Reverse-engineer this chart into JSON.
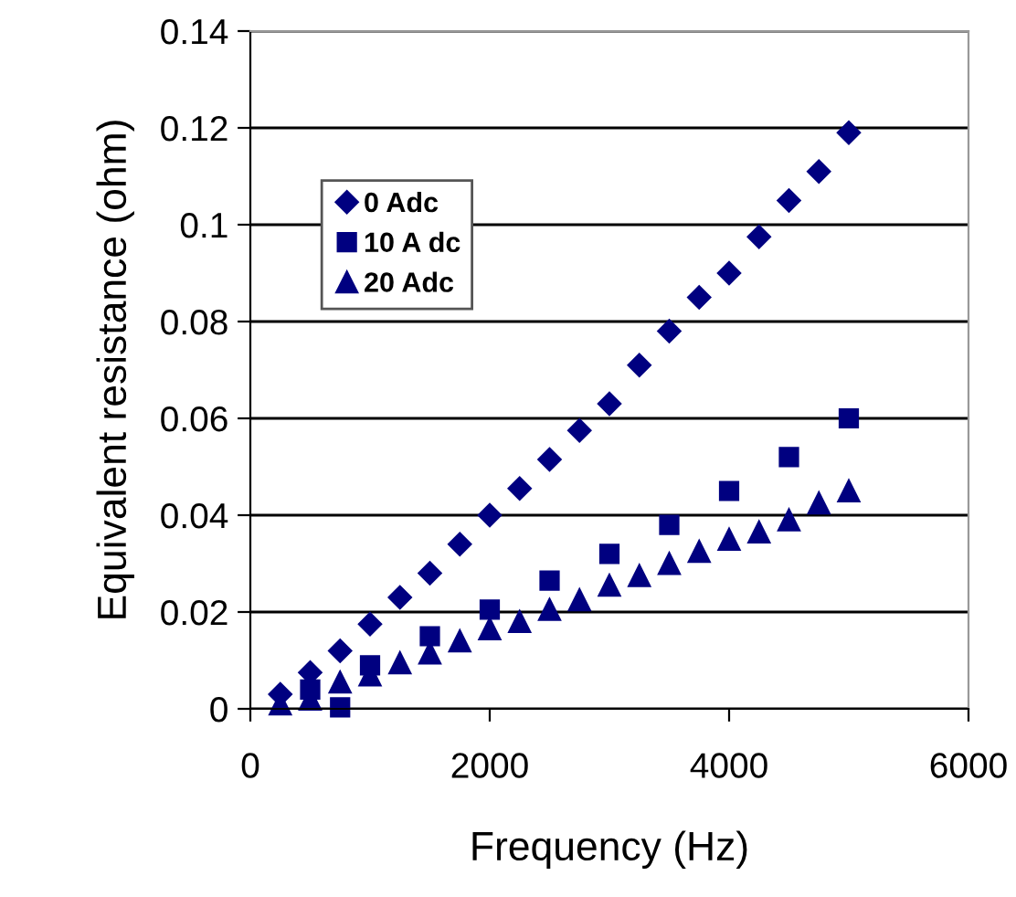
{
  "chart_data": {
    "type": "scatter",
    "xlabel": "Frequency (Hz)",
    "ylabel": "Equivalent resistance (ohm)",
    "xlim": [
      0,
      6000
    ],
    "xticks": [
      0,
      2000,
      4000,
      6000
    ],
    "ylim": [
      0,
      0.14
    ],
    "yticks": [
      0,
      0.02,
      0.04,
      0.06,
      0.08,
      0.1,
      0.12,
      0.14
    ],
    "grid": "y",
    "legend": "top left",
    "series": [
      {
        "name": "0 Adc",
        "color": "#000080",
        "marker": "diamond",
        "x": [
          250,
          500,
          750,
          1000,
          1250,
          1500,
          1750,
          2000,
          2250,
          2500,
          2750,
          3000,
          3250,
          3500,
          3750,
          4000,
          4250,
          4500,
          4750,
          5000
        ],
        "values": [
          0.003,
          0.0075,
          0.012,
          0.0175,
          0.023,
          0.028,
          0.034,
          0.04,
          0.0455,
          0.0515,
          0.0575,
          0.063,
          0.071,
          0.078,
          0.085,
          0.09,
          0.0975,
          0.105,
          0.111,
          0.119
        ]
      },
      {
        "name": "10 A dc",
        "color": "#000080",
        "marker": "square",
        "x": [
          500,
          750,
          1000,
          1500,
          2000,
          2500,
          3000,
          3500,
          4000,
          4500,
          5000
        ],
        "values": [
          0.004,
          0.0003,
          0.009,
          0.015,
          0.0205,
          0.0265,
          0.032,
          0.038,
          0.045,
          0.052,
          0.06
        ]
      },
      {
        "name": "20 Adc",
        "color": "#000080",
        "marker": "triangle",
        "x": [
          250,
          500,
          750,
          1000,
          1250,
          1500,
          1750,
          2000,
          2250,
          2500,
          2750,
          3000,
          3250,
          3500,
          3750,
          4000,
          4250,
          4500,
          4750,
          5000
        ],
        "values": [
          0.001,
          0.002,
          0.0055,
          0.007,
          0.0095,
          0.0115,
          0.014,
          0.0165,
          0.018,
          0.0205,
          0.0225,
          0.0255,
          0.0275,
          0.03,
          0.0325,
          0.035,
          0.0365,
          0.039,
          0.0425,
          0.045
        ]
      }
    ]
  }
}
